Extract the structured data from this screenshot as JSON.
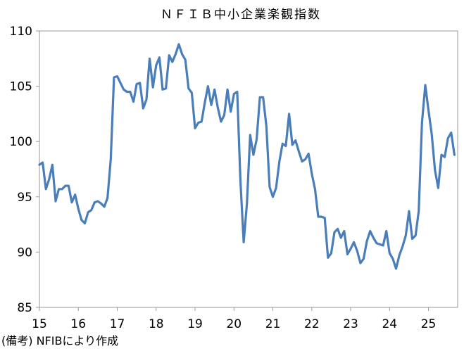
{
  "chart_data": {
    "type": "line",
    "title": "ＮＦＩＢ中小企業楽観指数",
    "xlabel": "",
    "ylabel": "",
    "ylim": [
      85,
      110
    ],
    "xlim": [
      2015.0,
      2025.75
    ],
    "yticks": [
      "85",
      "90",
      "95",
      "100",
      "105",
      "110"
    ],
    "xticks": [
      "15",
      "16",
      "17",
      "18",
      "19",
      "20",
      "21",
      "22",
      "23",
      "24",
      "25"
    ],
    "grid": false,
    "legend": "none",
    "line_color": "#4a7ebb",
    "series": [
      {
        "x": [
          2015.0,
          2015.083,
          2015.167,
          2015.25,
          2015.333,
          2015.417,
          2015.5,
          2015.583,
          2015.667,
          2015.75,
          2015.833,
          2015.917,
          2016.0,
          2016.083,
          2016.167,
          2016.25,
          2016.333,
          2016.417,
          2016.5,
          2016.583,
          2016.667,
          2016.75,
          2016.833,
          2016.917,
          2017.0,
          2017.083,
          2017.167,
          2017.25,
          2017.333,
          2017.417,
          2017.5,
          2017.583,
          2017.667,
          2017.75,
          2017.833,
          2017.917,
          2018.0,
          2018.083,
          2018.167,
          2018.25,
          2018.333,
          2018.417,
          2018.5,
          2018.583,
          2018.667,
          2018.75,
          2018.833,
          2018.917,
          2019.0,
          2019.083,
          2019.167,
          2019.25,
          2019.333,
          2019.417,
          2019.5,
          2019.583,
          2019.667,
          2019.75,
          2019.833,
          2019.917,
          2020.0,
          2020.083,
          2020.167,
          2020.25,
          2020.333,
          2020.417,
          2020.5,
          2020.583,
          2020.667,
          2020.75,
          2020.833,
          2020.917,
          2021.0,
          2021.083,
          2021.167,
          2021.25,
          2021.333,
          2021.417,
          2021.5,
          2021.583,
          2021.667,
          2021.75,
          2021.833,
          2021.917,
          2022.0,
          2022.083,
          2022.167,
          2022.25,
          2022.333,
          2022.417,
          2022.5,
          2022.583,
          2022.667,
          2022.75,
          2022.833,
          2022.917,
          2023.0,
          2023.083,
          2023.167,
          2023.25,
          2023.333,
          2023.417,
          2023.5,
          2023.583,
          2023.667,
          2023.75,
          2023.833,
          2023.917,
          2024.0,
          2024.083,
          2024.167,
          2024.25,
          2024.333,
          2024.417,
          2024.5,
          2024.583,
          2024.667,
          2024.75,
          2024.833,
          2024.917,
          2025.0,
          2025.083,
          2025.167,
          2025.25,
          2025.333,
          2025.417,
          2025.5,
          2025.583,
          2025.667
        ],
        "values": [
          97.9,
          98.1,
          95.7,
          96.6,
          97.9,
          94.6,
          95.7,
          95.7,
          96.0,
          96.0,
          94.5,
          95.2,
          93.9,
          92.9,
          92.6,
          93.6,
          93.8,
          94.5,
          94.6,
          94.4,
          94.1,
          94.9,
          98.4,
          105.8,
          105.9,
          105.3,
          104.7,
          104.5,
          104.5,
          103.6,
          105.2,
          105.3,
          103.0,
          103.8,
          107.5,
          104.9,
          106.9,
          107.6,
          104.7,
          104.8,
          107.8,
          107.2,
          107.9,
          108.8,
          107.9,
          107.4,
          104.8,
          104.4,
          101.2,
          101.7,
          101.8,
          103.5,
          105.0,
          103.3,
          104.7,
          103.1,
          101.8,
          102.4,
          104.7,
          102.7,
          104.3,
          104.5,
          96.4,
          90.9,
          94.4,
          100.6,
          98.8,
          100.2,
          104.0,
          104.0,
          101.4,
          95.9,
          95.0,
          95.8,
          98.2,
          99.8,
          99.6,
          102.5,
          99.7,
          100.1,
          99.1,
          98.2,
          98.4,
          98.9,
          97.1,
          95.7,
          93.2,
          93.2,
          93.1,
          89.5,
          89.9,
          91.8,
          92.1,
          91.3,
          91.9,
          89.8,
          90.3,
          90.9,
          90.1,
          89.0,
          89.4,
          91.0,
          91.9,
          91.3,
          90.8,
          90.7,
          90.6,
          91.9,
          89.9,
          89.4,
          88.5,
          89.7,
          90.5,
          91.5,
          93.7,
          91.2,
          91.5,
          93.7,
          101.7,
          105.1,
          102.8,
          100.7,
          97.4,
          95.8,
          98.8,
          98.6,
          100.3,
          100.8,
          98.8
        ]
      }
    ]
  },
  "source_note": "(備考) NFIBにより作成"
}
